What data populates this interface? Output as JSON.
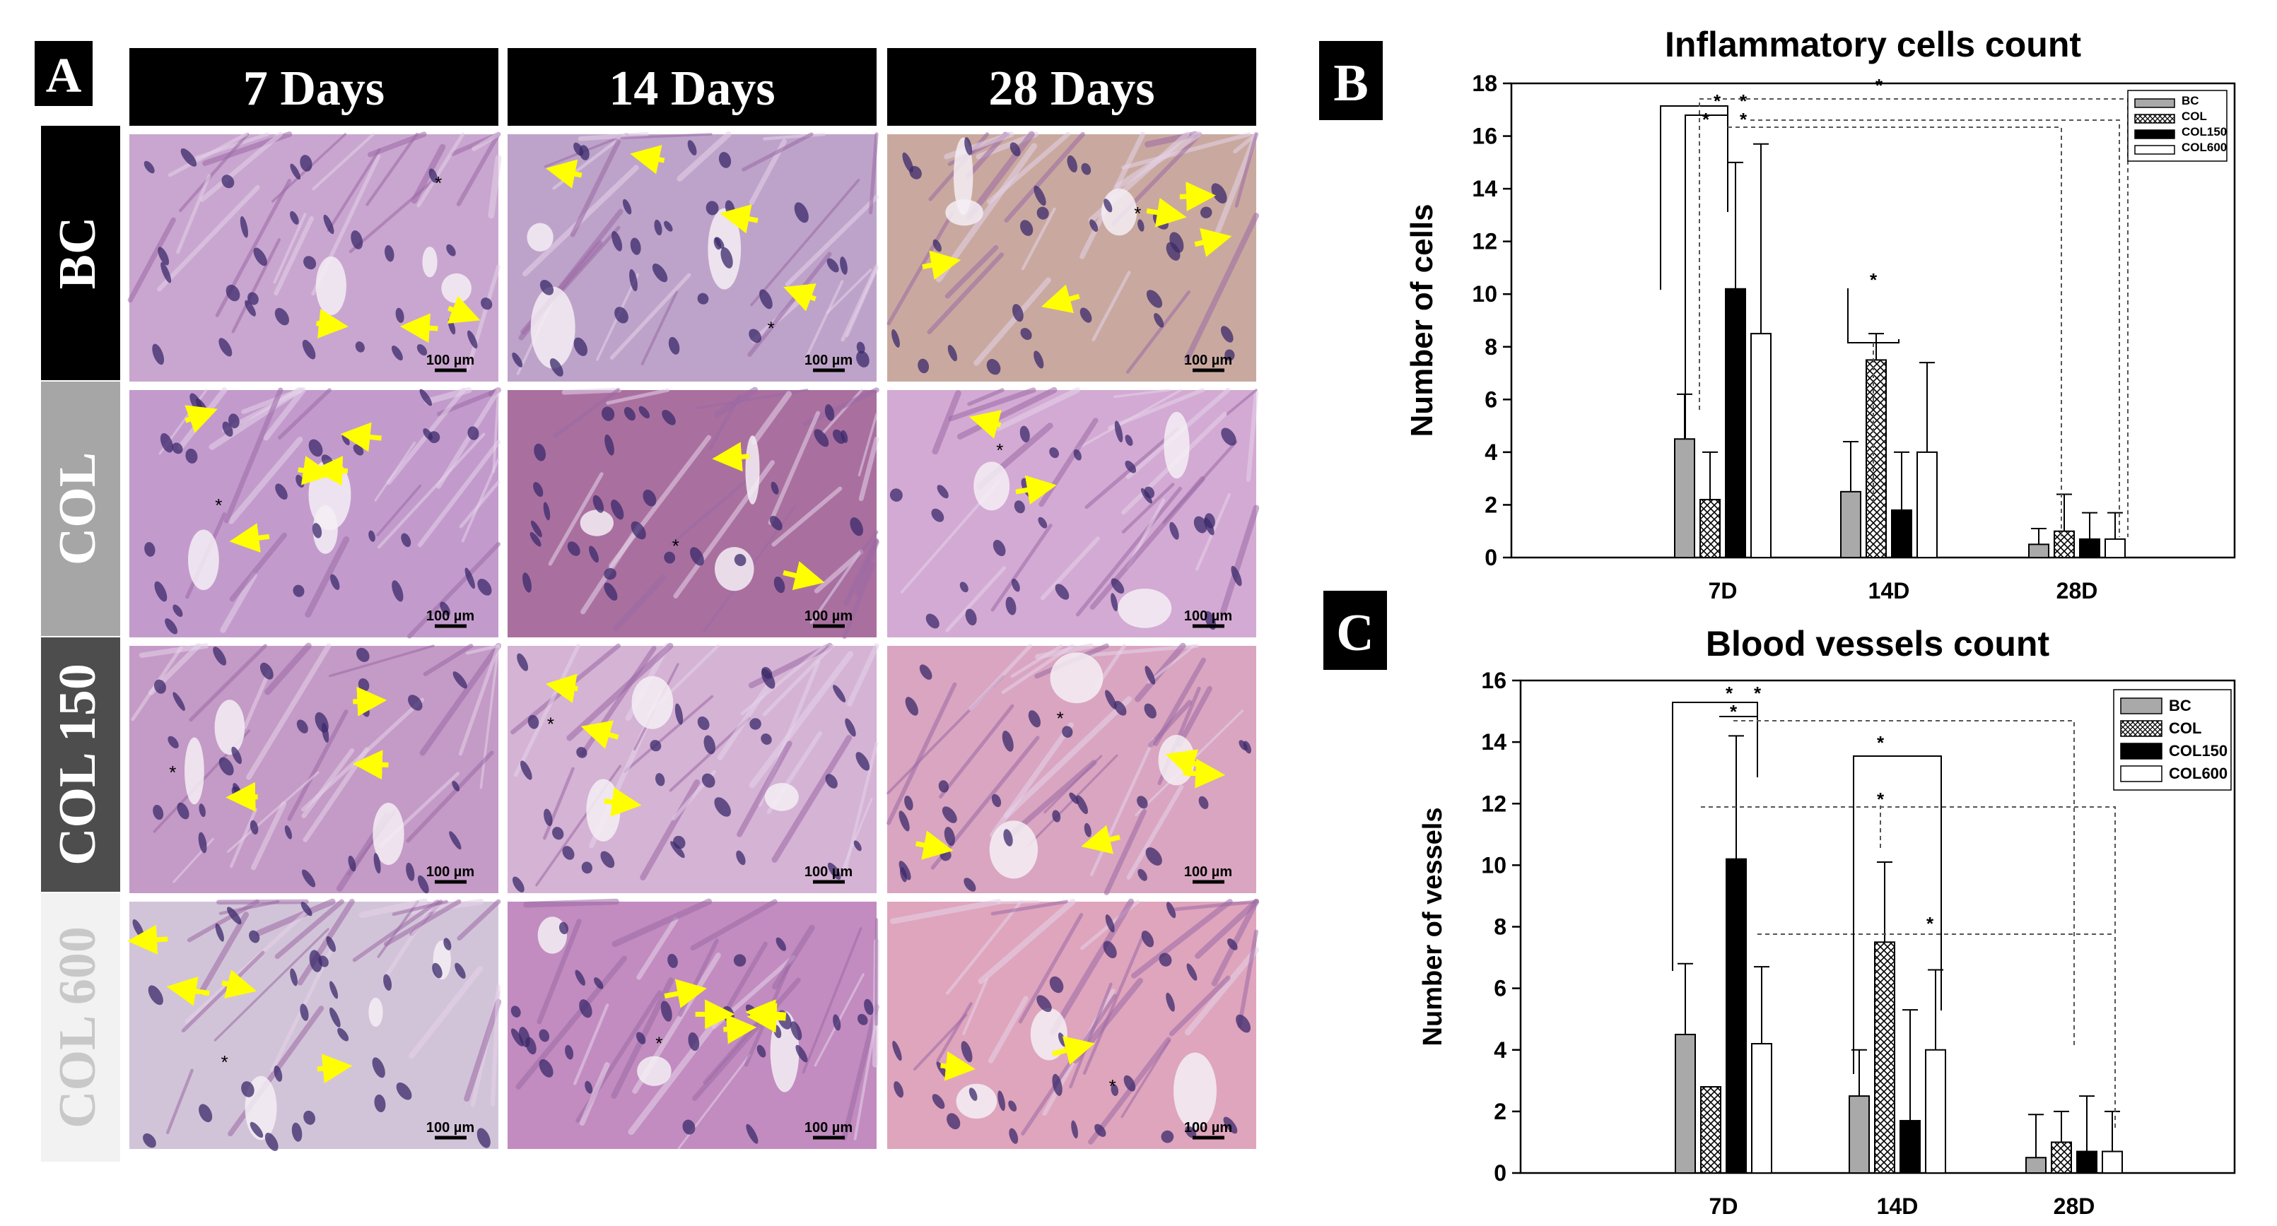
{
  "panel_a": {
    "letter": "A",
    "columns": [
      "7 Days",
      "14 Days",
      "28 Days"
    ],
    "rows": [
      {
        "label": "BC",
        "header_bg": "#000000",
        "header_fg": "#ffffff"
      },
      {
        "label": "COL",
        "header_bg": "#a6a6a6",
        "header_fg": "#ffffff"
      },
      {
        "label": "COL 150",
        "header_bg": "#4d4d4d",
        "header_fg": "#ffffff"
      },
      {
        "label": "COL 600",
        "header_bg": "#f2f2f2",
        "header_fg": "#c8c8c8"
      }
    ],
    "scale_bar_label": "100 µm",
    "tissue_colors": {
      "BC": [
        "#c9a6cf",
        "#bda3c9",
        "#c9a99f"
      ],
      "COL": [
        "#c29bcc",
        "#a9709f",
        "#d3aad3"
      ],
      "COL 150": [
        "#c49ac6",
        "#d4b3d4",
        "#d9a5c0"
      ],
      "COL 600": [
        "#d2c4d8",
        "#c28cc0",
        "#dfa5bd"
      ]
    },
    "arrow_color": "#ffff00"
  },
  "chart_data": [
    {
      "panel_letter": "B",
      "type": "bar",
      "title": "Inflammatory cells count",
      "xlabel": "",
      "ylabel": "Number of cells",
      "ylim": [
        0,
        18
      ],
      "yticks": [
        "0",
        "2",
        "4",
        "6",
        "8",
        "10",
        "12",
        "14",
        "16",
        "18"
      ],
      "categories": [
        "7D",
        "14D",
        "28D"
      ],
      "legend_position": "top-right",
      "series": [
        {
          "name": "BC",
          "fill": "#a9a9a9",
          "pattern": "solid",
          "values": [
            4.5,
            2.5,
            0.5
          ],
          "errors": [
            1.7,
            1.9,
            0.6
          ]
        },
        {
          "name": "COL",
          "fill": "#ffffff",
          "pattern": "crosshatch",
          "values": [
            2.2,
            7.5,
            1.0
          ],
          "errors": [
            1.8,
            1.0,
            1.4
          ]
        },
        {
          "name": "COL150",
          "fill": "#000000",
          "pattern": "solid",
          "values": [
            10.2,
            1.8,
            0.7
          ],
          "errors": [
            4.8,
            2.2,
            1.0
          ]
        },
        {
          "name": "COL600",
          "fill": "#ffffff",
          "pattern": "solid",
          "values": [
            8.5,
            4.0,
            0.7
          ],
          "errors": [
            7.2,
            3.4,
            1.0
          ]
        }
      ],
      "significance_marks": [
        "*",
        "*",
        "*",
        "*",
        "*",
        "*"
      ]
    },
    {
      "panel_letter": "C",
      "type": "bar",
      "title": "Blood vessels count",
      "xlabel": "",
      "ylabel": "Number of vessels",
      "ylim": [
        0,
        16
      ],
      "yticks": [
        "0",
        "2",
        "4",
        "6",
        "8",
        "10",
        "12",
        "14",
        "16"
      ],
      "categories": [
        "7D",
        "14D",
        "28D"
      ],
      "legend_position": "top-right",
      "series": [
        {
          "name": "BC",
          "fill": "#a9a9a9",
          "pattern": "solid",
          "values": [
            4.5,
            2.5,
            0.5
          ],
          "errors": [
            2.3,
            1.5,
            1.4
          ]
        },
        {
          "name": "COL",
          "fill": "#ffffff",
          "pattern": "crosshatch",
          "values": [
            2.8,
            7.5,
            1.0
          ],
          "errors": [
            0.0,
            2.6,
            1.0
          ]
        },
        {
          "name": "COL150",
          "fill": "#000000",
          "pattern": "solid",
          "values": [
            10.2,
            1.7,
            0.7
          ],
          "errors": [
            4.0,
            3.6,
            1.8
          ]
        },
        {
          "name": "COL600",
          "fill": "#ffffff",
          "pattern": "solid",
          "values": [
            4.2,
            4.0,
            0.7
          ],
          "errors": [
            2.5,
            2.6,
            1.3
          ]
        }
      ],
      "significance_marks": [
        "*",
        "*",
        "*",
        "*",
        "*",
        "*"
      ]
    }
  ]
}
